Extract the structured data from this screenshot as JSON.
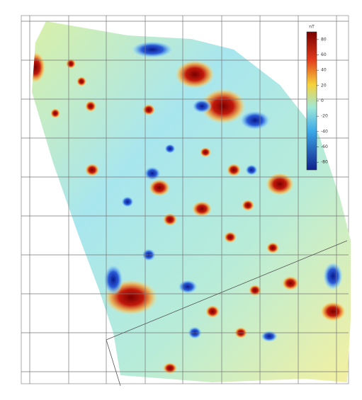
{
  "map": {
    "colorbar": {
      "unit": "nT",
      "ticks": [
        80,
        60,
        40,
        20,
        0,
        -20,
        -40,
        -60,
        -80
      ],
      "lim": [
        -90,
        90
      ]
    }
  }
}
